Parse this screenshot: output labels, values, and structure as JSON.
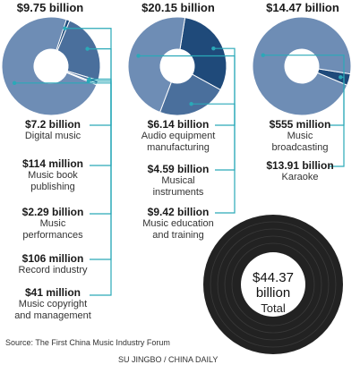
{
  "chart_data": [
    {
      "type": "pie",
      "total_label": "$9.75 billion",
      "slices": [
        {
          "label": "Digital music",
          "value_label": "$7.2 billion",
          "value": 7.2
        },
        {
          "label": "Music book publishing",
          "value_label": "$114 million",
          "value": 0.114
        },
        {
          "label": "Music performances",
          "value_label": "$2.29 billion",
          "value": 2.29
        },
        {
          "label": "Record industry",
          "value_label": "$106 million",
          "value": 0.106
        },
        {
          "label": "Music copyright and management",
          "value_label": "$41 million",
          "value": 0.041
        }
      ],
      "label_lines": [
        {
          "value_label": "$7.2 billion",
          "desc": "Digital music"
        },
        {
          "value_label": "$114 million",
          "desc": "Music book\npublishing"
        },
        {
          "value_label": "$2.29 billion",
          "desc": "Music\nperformances"
        },
        {
          "value_label": "$106 million",
          "desc": "Record industry"
        },
        {
          "value_label": "$41 million",
          "desc": "Music copyright\nand management"
        }
      ]
    },
    {
      "type": "pie",
      "total_label": "$20.15 billion",
      "slices": [
        {
          "label": "Audio equipment manufacturing",
          "value_label": "$6.14 billion",
          "value": 6.14
        },
        {
          "label": "Musical instruments",
          "value_label": "$4.59 billion",
          "value": 4.59
        },
        {
          "label": "Music education and training",
          "value_label": "$9.42 billion",
          "value": 9.42
        }
      ],
      "label_lines": [
        {
          "value_label": "$6.14 billion",
          "desc": "Audio equipment\nmanufacturing"
        },
        {
          "value_label": "$4.59 billion",
          "desc": "Musical\ninstruments"
        },
        {
          "value_label": "$9.42 billion",
          "desc": "Music education\nand training"
        }
      ]
    },
    {
      "type": "pie",
      "total_label": "$14.47 billion",
      "slices": [
        {
          "label": "Music broadcasting",
          "value_label": "$555 million",
          "value": 0.555
        },
        {
          "label": "Karaoke",
          "value_label": "$13.91 billion",
          "value": 13.91
        }
      ],
      "label_lines": [
        {
          "value_label": "$555 million",
          "desc": "Music\nbroadcasting"
        },
        {
          "value_label": "$13.91 billion",
          "desc": "Karaoke"
        }
      ]
    }
  ],
  "total": {
    "value_label": "$44.37\nbillion",
    "desc": "Total"
  },
  "source": "Source: The First China Music Industry Forum",
  "credit": "SU JINGBO / CHINA DAILY",
  "colors": {
    "dark": "#1f4a7a",
    "mid": "#4a6f9c",
    "light": "#6e8db5",
    "line": "#2aa9b8",
    "record": "#222222"
  }
}
